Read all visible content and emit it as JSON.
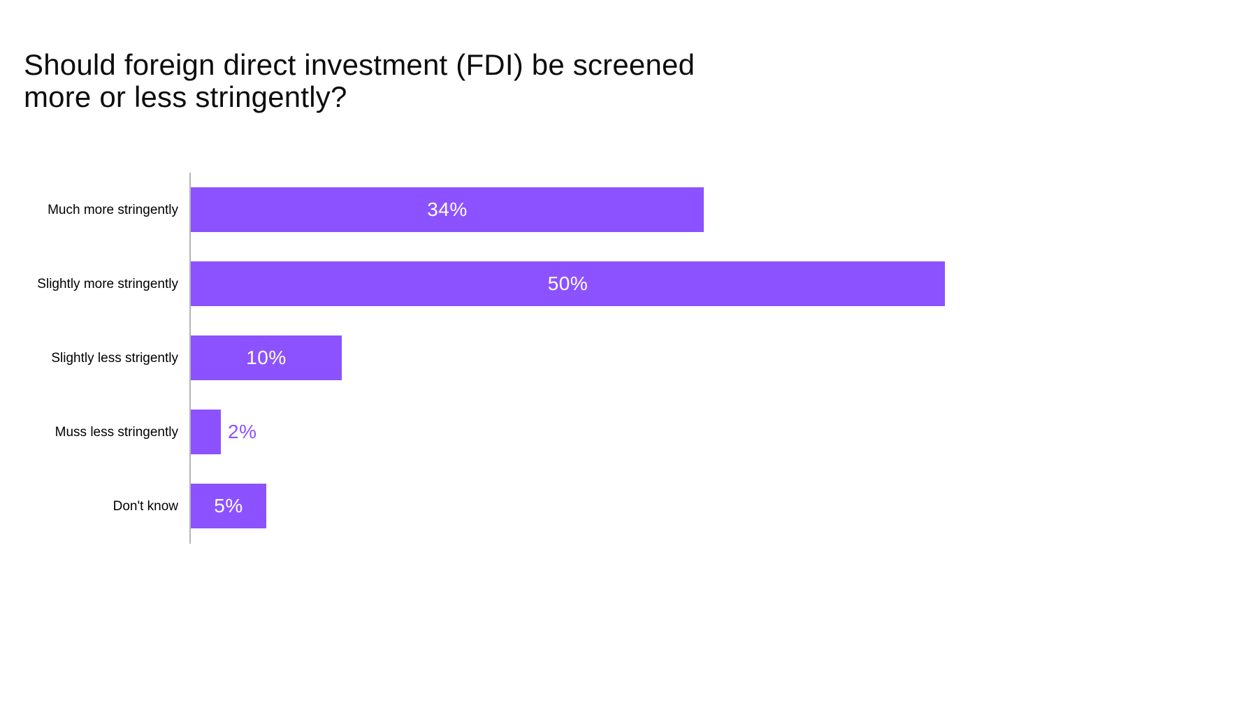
{
  "page": {
    "background_color": "#ffffff"
  },
  "title_lines": [
    "Should foreign direct investment (FDI) be screened",
    "more or less stringently?"
  ],
  "chart_data": {
    "type": "bar",
    "orientation": "horizontal",
    "title": "Should foreign direct investment (FDI) be screened more or less stringently?",
    "categories": [
      "Much more stringently",
      "Slightly more stringently",
      "Slightly less strigently",
      "Muss less stringently",
      "Don't know"
    ],
    "values": [
      34,
      50,
      10,
      2,
      5
    ],
    "value_labels": [
      "34%",
      "50%",
      "10%",
      "2%",
      "5%"
    ],
    "xlabel": "",
    "ylabel": "",
    "axis_ticks_visible": false,
    "grid": false,
    "legend": false,
    "bar_color": "#8c52ff",
    "value_label_color_inside": "#ffffff",
    "value_label_color_outside": "#8c52ff",
    "axis_line_color": "#b5b5b5",
    "text_color": "#000000"
  }
}
